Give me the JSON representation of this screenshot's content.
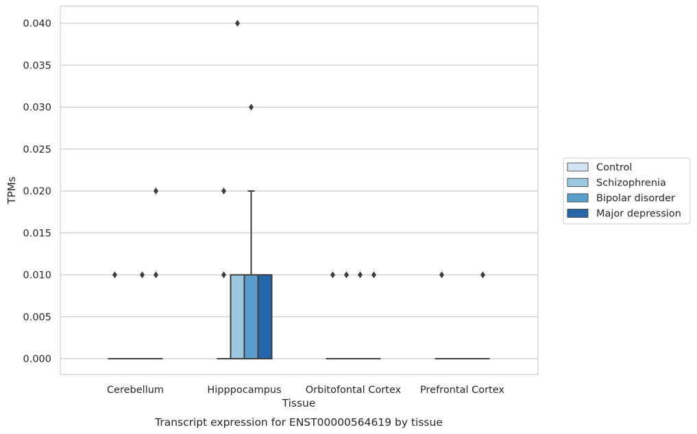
{
  "chart_data": {
    "type": "box",
    "title": "",
    "caption": "Transcript expression for ENST00000564619 by tissue",
    "xlabel": "Tissue",
    "ylabel": "TPMs",
    "ylim": [
      -0.0019,
      0.0412
    ],
    "yticks": [
      "0.000",
      "0.005",
      "0.010",
      "0.015",
      "0.020",
      "0.025",
      "0.030",
      "0.035",
      "0.040"
    ],
    "grid": "horizontal",
    "legend_position": "right",
    "categories": [
      "Cerebellum",
      "Hipppocampus",
      "Orbitofontal Cortex",
      "Prefrontal Cortex"
    ],
    "series": [
      {
        "name": "Control",
        "color": "#d2e3f3",
        "boxes": [
          {
            "q1": 0,
            "median": 0,
            "q3": 0,
            "whisker_low": 0,
            "whisker_high": 0,
            "outliers": [
              0.01
            ]
          },
          {
            "q1": 0,
            "median": 0,
            "q3": 0,
            "whisker_low": 0,
            "whisker_high": 0,
            "outliers": [
              0.01,
              0.02
            ]
          },
          {
            "q1": 0,
            "median": 0,
            "q3": 0,
            "whisker_low": 0,
            "whisker_high": 0,
            "outliers": [
              0.01
            ]
          },
          {
            "q1": 0,
            "median": 0,
            "q3": 0,
            "whisker_low": 0,
            "whisker_high": 0,
            "outliers": [
              0.01
            ]
          }
        ]
      },
      {
        "name": "Schizophrenia",
        "color": "#9ac8e0",
        "boxes": [
          {
            "q1": 0,
            "median": 0,
            "q3": 0,
            "whisker_low": 0,
            "whisker_high": 0,
            "outliers": []
          },
          {
            "q1": 0,
            "median": 0,
            "q3": 0.01,
            "whisker_low": 0,
            "whisker_high": 0.01,
            "outliers": [
              0.04
            ]
          },
          {
            "q1": 0,
            "median": 0,
            "q3": 0,
            "whisker_low": 0,
            "whisker_high": 0,
            "outliers": [
              0.01
            ]
          },
          {
            "q1": 0,
            "median": 0,
            "q3": 0,
            "whisker_low": 0,
            "whisker_high": 0,
            "outliers": []
          }
        ]
      },
      {
        "name": "Bipolar disorder",
        "color": "#5a9ecc",
        "boxes": [
          {
            "q1": 0,
            "median": 0,
            "q3": 0,
            "whisker_low": 0,
            "whisker_high": 0,
            "outliers": [
              0.01
            ]
          },
          {
            "q1": 0,
            "median": 0,
            "q3": 0.01,
            "whisker_low": 0,
            "whisker_high": 0.02,
            "outliers": [
              0.03
            ]
          },
          {
            "q1": 0,
            "median": 0,
            "q3": 0,
            "whisker_low": 0,
            "whisker_high": 0,
            "outliers": [
              0.01
            ]
          },
          {
            "q1": 0,
            "median": 0,
            "q3": 0,
            "whisker_low": 0,
            "whisker_high": 0,
            "outliers": []
          }
        ]
      },
      {
        "name": "Major depression",
        "color": "#2565a8",
        "boxes": [
          {
            "q1": 0,
            "median": 0,
            "q3": 0,
            "whisker_low": 0,
            "whisker_high": 0,
            "outliers": [
              0.01,
              0.02
            ]
          },
          {
            "q1": 0,
            "median": 0,
            "q3": 0.01,
            "whisker_low": 0,
            "whisker_high": 0.01,
            "outliers": []
          },
          {
            "q1": 0,
            "median": 0,
            "q3": 0,
            "whisker_low": 0,
            "whisker_high": 0,
            "outliers": [
              0.01
            ]
          },
          {
            "q1": 0,
            "median": 0,
            "q3": 0,
            "whisker_low": 0,
            "whisker_high": 0,
            "outliers": [
              0.01
            ]
          }
        ]
      }
    ]
  }
}
